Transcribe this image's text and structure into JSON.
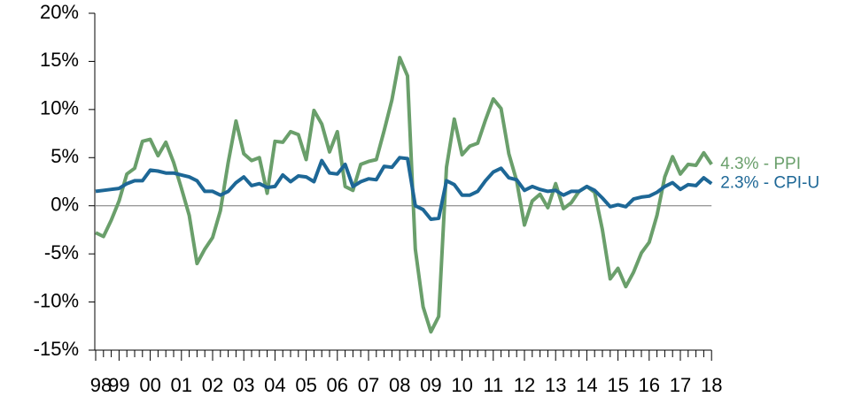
{
  "chart_data": {
    "type": "line",
    "categories": [
      "98",
      null,
      null,
      "99",
      null,
      null,
      null,
      "00",
      null,
      null,
      null,
      "01",
      null,
      null,
      null,
      "02",
      null,
      null,
      null,
      "03",
      null,
      null,
      null,
      "04",
      null,
      null,
      null,
      "05",
      null,
      null,
      null,
      "06",
      null,
      null,
      null,
      "07",
      null,
      null,
      null,
      "08",
      null,
      null,
      null,
      "09",
      null,
      null,
      null,
      "10",
      null,
      null,
      null,
      "11",
      null,
      null,
      null,
      "12",
      null,
      null,
      null,
      "13",
      null,
      null,
      null,
      "14",
      null,
      null,
      null,
      "15",
      null,
      null,
      null,
      "16",
      null,
      null,
      null,
      "17",
      null,
      null,
      null,
      "18"
    ],
    "series": [
      {
        "name": "4.3% - PPI",
        "color": "#6a9f6b",
        "values": [
          -2.8,
          -3.2,
          -1.5,
          0.5,
          3.3,
          3.9,
          6.7,
          6.9,
          5.2,
          6.6,
          4.5,
          1.8,
          -1.0,
          -6.0,
          -4.5,
          -3.3,
          -0.5,
          4.5,
          8.8,
          5.4,
          4.7,
          5.0,
          1.3,
          6.7,
          6.6,
          7.7,
          7.4,
          4.8,
          9.9,
          8.5,
          5.6,
          7.7,
          2.0,
          1.6,
          4.3,
          4.6,
          4.8,
          7.8,
          11.0,
          15.4,
          13.5,
          -4.5,
          -10.5,
          -13.1,
          -11.5,
          4.0,
          9.0,
          5.3,
          6.2,
          6.5,
          8.9,
          11.1,
          10.1,
          5.4,
          2.6,
          -2.0,
          0.5,
          1.2,
          -0.2,
          2.3,
          -0.3,
          0.3,
          1.5,
          2.0,
          1.4,
          -2.5,
          -7.6,
          -6.5,
          -8.4,
          -6.9,
          -4.9,
          -3.8,
          -1.0,
          3.0,
          5.1,
          3.3,
          4.3,
          4.2,
          5.5,
          4.3
        ]
      },
      {
        "name": "2.3% - CPI-U",
        "color": "#1d6796",
        "values": [
          1.5,
          1.6,
          1.7,
          1.8,
          2.3,
          2.6,
          2.6,
          3.7,
          3.6,
          3.4,
          3.4,
          3.2,
          3.0,
          2.6,
          1.5,
          1.5,
          1.1,
          1.5,
          2.4,
          3.0,
          2.1,
          2.3,
          1.9,
          2.0,
          3.2,
          2.5,
          3.1,
          3.0,
          2.5,
          4.7,
          3.4,
          3.3,
          4.3,
          2.0,
          2.5,
          2.8,
          2.7,
          4.1,
          4.0,
          5.0,
          4.9,
          0.0,
          -0.4,
          -1.4,
          -1.3,
          2.6,
          2.2,
          1.1,
          1.1,
          1.5,
          2.6,
          3.5,
          3.9,
          2.9,
          2.7,
          1.6,
          2.0,
          1.7,
          1.5,
          1.6,
          1.1,
          1.5,
          1.5,
          2.0,
          1.6,
          0.8,
          -0.1,
          0.1,
          -0.1,
          0.7,
          0.9,
          1.0,
          1.4,
          2.0,
          2.4,
          1.7,
          2.2,
          2.1,
          2.9,
          2.3
        ]
      }
    ],
    "ylim": [
      -15,
      20
    ],
    "yticks": [
      {
        "value": -15,
        "label": "-15%"
      },
      {
        "value": -10,
        "label": "-10%"
      },
      {
        "value": -5,
        "label": "-5%"
      },
      {
        "value": 0,
        "label": "0%"
      },
      {
        "value": 5,
        "label": "5%"
      },
      {
        "value": 10,
        "label": "10%"
      },
      {
        "value": 15,
        "label": "15%"
      },
      {
        "value": 20,
        "label": "20%"
      }
    ]
  }
}
